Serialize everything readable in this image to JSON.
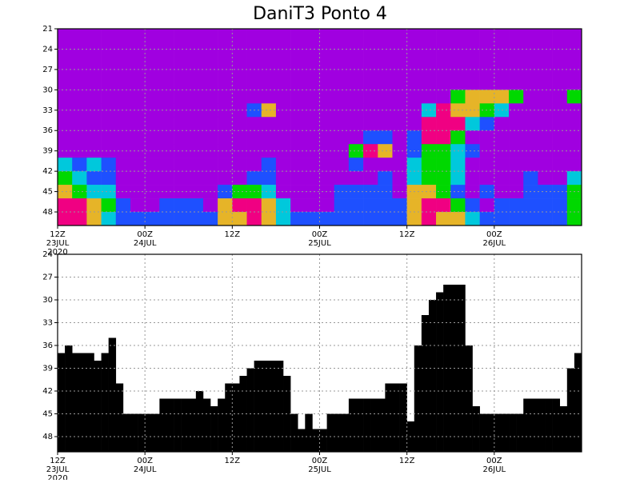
{
  "chart_data": [
    {
      "type": "heatmap",
      "title": "DaniT3 Ponto 4",
      "x_edges": [
        0,
        2,
        4,
        6,
        8,
        10,
        12,
        14,
        16,
        18,
        20,
        22,
        24,
        26,
        28,
        30,
        32,
        34,
        36,
        38,
        40,
        42,
        44,
        46,
        48,
        50,
        52,
        54,
        56,
        58,
        60,
        62,
        64,
        66,
        68,
        70,
        72
      ],
      "y_edges": [
        21,
        24,
        27,
        30,
        32,
        34,
        36,
        38,
        40,
        42,
        44,
        46,
        48,
        50
      ],
      "xlim": [
        0,
        72
      ],
      "ylim": [
        21,
        50
      ],
      "y_inverted": true,
      "grid": true,
      "colors": [
        "#a000e0",
        "#1e50ff",
        "#00c8dc",
        "#00d800",
        "#e6b428",
        "#f00082"
      ],
      "yticks": [
        21,
        24,
        27,
        30,
        33,
        36,
        39,
        42,
        45,
        48
      ],
      "xticks": [
        {
          "value": 0,
          "label": [
            "12Z",
            "23JUL",
            "2020"
          ]
        },
        {
          "value": 12,
          "label": [
            "00Z",
            "24JUL"
          ]
        },
        {
          "value": 24,
          "label": [
            "12Z"
          ]
        },
        {
          "value": 36,
          "label": [
            "00Z",
            "25JUL"
          ]
        },
        {
          "value": 48,
          "label": [
            "12Z"
          ]
        },
        {
          "value": 60,
          "label": [
            "00Z",
            "26JUL"
          ]
        }
      ],
      "z": [
        [
          0,
          0,
          0,
          0,
          0,
          0,
          0,
          0,
          0,
          0,
          0,
          0,
          0,
          0,
          0,
          0,
          0,
          0,
          0,
          0,
          0,
          0,
          0,
          0,
          0,
          0,
          0,
          0,
          0,
          0,
          0,
          0,
          0,
          0,
          0,
          0
        ],
        [
          0,
          0,
          0,
          0,
          0,
          0,
          0,
          0,
          0,
          0,
          0,
          0,
          0,
          0,
          0,
          0,
          0,
          0,
          0,
          0,
          0,
          0,
          0,
          0,
          0,
          0,
          0,
          0,
          0,
          0,
          0,
          0,
          0,
          0,
          0,
          0
        ],
        [
          0,
          0,
          0,
          0,
          0,
          0,
          0,
          0,
          0,
          0,
          0,
          0,
          0,
          0,
          0,
          0,
          0,
          0,
          0,
          0,
          0,
          0,
          0,
          0,
          0,
          0,
          0,
          0,
          0,
          0,
          0,
          0,
          0,
          0,
          0,
          0
        ],
        [
          0,
          0,
          0,
          0,
          0,
          0,
          0,
          0,
          0,
          0,
          0,
          0,
          0,
          0,
          0,
          0,
          0,
          0,
          0,
          0,
          0,
          0,
          0,
          0,
          0,
          0,
          0,
          3,
          4,
          4,
          4,
          3,
          0,
          0,
          0,
          3
        ],
        [
          0,
          0,
          0,
          0,
          0,
          0,
          0,
          0,
          0,
          0,
          0,
          0,
          0,
          1,
          4,
          0,
          0,
          0,
          0,
          0,
          0,
          0,
          0,
          0,
          0,
          2,
          5,
          4,
          4,
          3,
          2,
          0,
          0,
          0,
          0,
          0
        ],
        [
          0,
          0,
          0,
          0,
          0,
          0,
          0,
          0,
          0,
          0,
          0,
          0,
          0,
          0,
          0,
          0,
          0,
          0,
          0,
          0,
          0,
          0,
          0,
          0,
          0,
          5,
          5,
          5,
          2,
          1,
          0,
          0,
          0,
          0,
          0,
          0
        ],
        [
          0,
          0,
          0,
          0,
          0,
          0,
          0,
          0,
          0,
          0,
          0,
          0,
          0,
          0,
          0,
          0,
          0,
          0,
          0,
          0,
          0,
          1,
          1,
          0,
          1,
          5,
          5,
          3,
          0,
          0,
          0,
          0,
          0,
          0,
          0,
          0
        ],
        [
          0,
          0,
          0,
          0,
          0,
          0,
          0,
          0,
          0,
          0,
          0,
          0,
          0,
          0,
          0,
          0,
          0,
          0,
          0,
          0,
          3,
          5,
          4,
          0,
          1,
          3,
          3,
          2,
          1,
          0,
          0,
          0,
          0,
          0,
          0,
          0
        ],
        [
          2,
          1,
          2,
          1,
          0,
          0,
          0,
          0,
          0,
          0,
          0,
          0,
          0,
          0,
          1,
          0,
          0,
          0,
          0,
          0,
          1,
          0,
          0,
          0,
          2,
          3,
          3,
          2,
          0,
          0,
          0,
          0,
          0,
          0,
          0,
          0
        ],
        [
          3,
          2,
          1,
          1,
          0,
          0,
          0,
          0,
          0,
          0,
          0,
          0,
          0,
          1,
          1,
          0,
          0,
          0,
          0,
          0,
          0,
          0,
          1,
          0,
          2,
          3,
          3,
          2,
          0,
          0,
          0,
          0,
          1,
          0,
          0,
          2
        ],
        [
          4,
          3,
          2,
          2,
          0,
          0,
          0,
          0,
          0,
          0,
          0,
          1,
          3,
          3,
          2,
          0,
          0,
          0,
          0,
          1,
          1,
          1,
          1,
          0,
          4,
          4,
          3,
          1,
          0,
          1,
          0,
          0,
          1,
          1,
          1,
          3
        ],
        [
          5,
          5,
          4,
          3,
          1,
          0,
          0,
          1,
          1,
          1,
          0,
          4,
          5,
          5,
          4,
          2,
          0,
          0,
          0,
          1,
          1,
          1,
          1,
          1,
          4,
          5,
          5,
          3,
          1,
          0,
          1,
          1,
          1,
          1,
          1,
          3
        ],
        [
          5,
          5,
          4,
          2,
          1,
          1,
          1,
          1,
          1,
          1,
          1,
          4,
          4,
          5,
          4,
          2,
          1,
          1,
          1,
          1,
          1,
          1,
          1,
          1,
          4,
          5,
          4,
          4,
          2,
          1,
          1,
          1,
          1,
          1,
          1,
          3
        ]
      ]
    },
    {
      "type": "step-area",
      "color": "#000000",
      "xlim": [
        0,
        72
      ],
      "ylim": [
        24,
        50
      ],
      "y_inverted": true,
      "grid": true,
      "yticks": [
        24,
        27,
        30,
        33,
        36,
        39,
        42,
        45,
        48
      ],
      "xticks": [
        {
          "value": 0,
          "label": [
            "12Z",
            "23JUL",
            "2020"
          ]
        },
        {
          "value": 12,
          "label": [
            "00Z",
            "24JUL"
          ]
        },
        {
          "value": 24,
          "label": [
            "12Z"
          ]
        },
        {
          "value": 36,
          "label": [
            "00Z",
            "25JUL"
          ]
        },
        {
          "value": 48,
          "label": [
            "12Z"
          ]
        },
        {
          "value": 60,
          "label": [
            "00Z",
            "26JUL"
          ]
        }
      ],
      "x": [
        0,
        1,
        2,
        3,
        4,
        5,
        6,
        7,
        8,
        9,
        10,
        11,
        12,
        13,
        14,
        15,
        16,
        17,
        18,
        19,
        20,
        21,
        22,
        23,
        24,
        25,
        26,
        27,
        28,
        29,
        30,
        31,
        32,
        33,
        34,
        35,
        36,
        37,
        38,
        39,
        40,
        41,
        42,
        43,
        44,
        45,
        46,
        47,
        48,
        49,
        50,
        51,
        52,
        53,
        54,
        55,
        56,
        57,
        58,
        59,
        60,
        61,
        62,
        63,
        64,
        65,
        66,
        67,
        68,
        69,
        70,
        71
      ],
      "values": [
        37,
        36,
        37,
        37,
        37,
        38,
        37,
        35,
        41,
        45,
        45,
        45,
        45,
        45,
        43,
        43,
        43,
        43,
        43,
        42,
        43,
        44,
        43,
        41,
        41,
        40,
        39,
        38,
        38,
        38,
        38,
        40,
        45,
        47,
        45,
        47,
        47,
        45,
        45,
        45,
        43,
        43,
        43,
        43,
        43,
        41,
        41,
        41,
        46,
        36,
        32,
        30,
        29,
        28,
        28,
        28,
        36,
        44,
        45,
        45,
        45,
        45,
        45,
        45,
        43,
        43,
        43,
        43,
        43,
        44,
        39,
        37
      ]
    }
  ]
}
